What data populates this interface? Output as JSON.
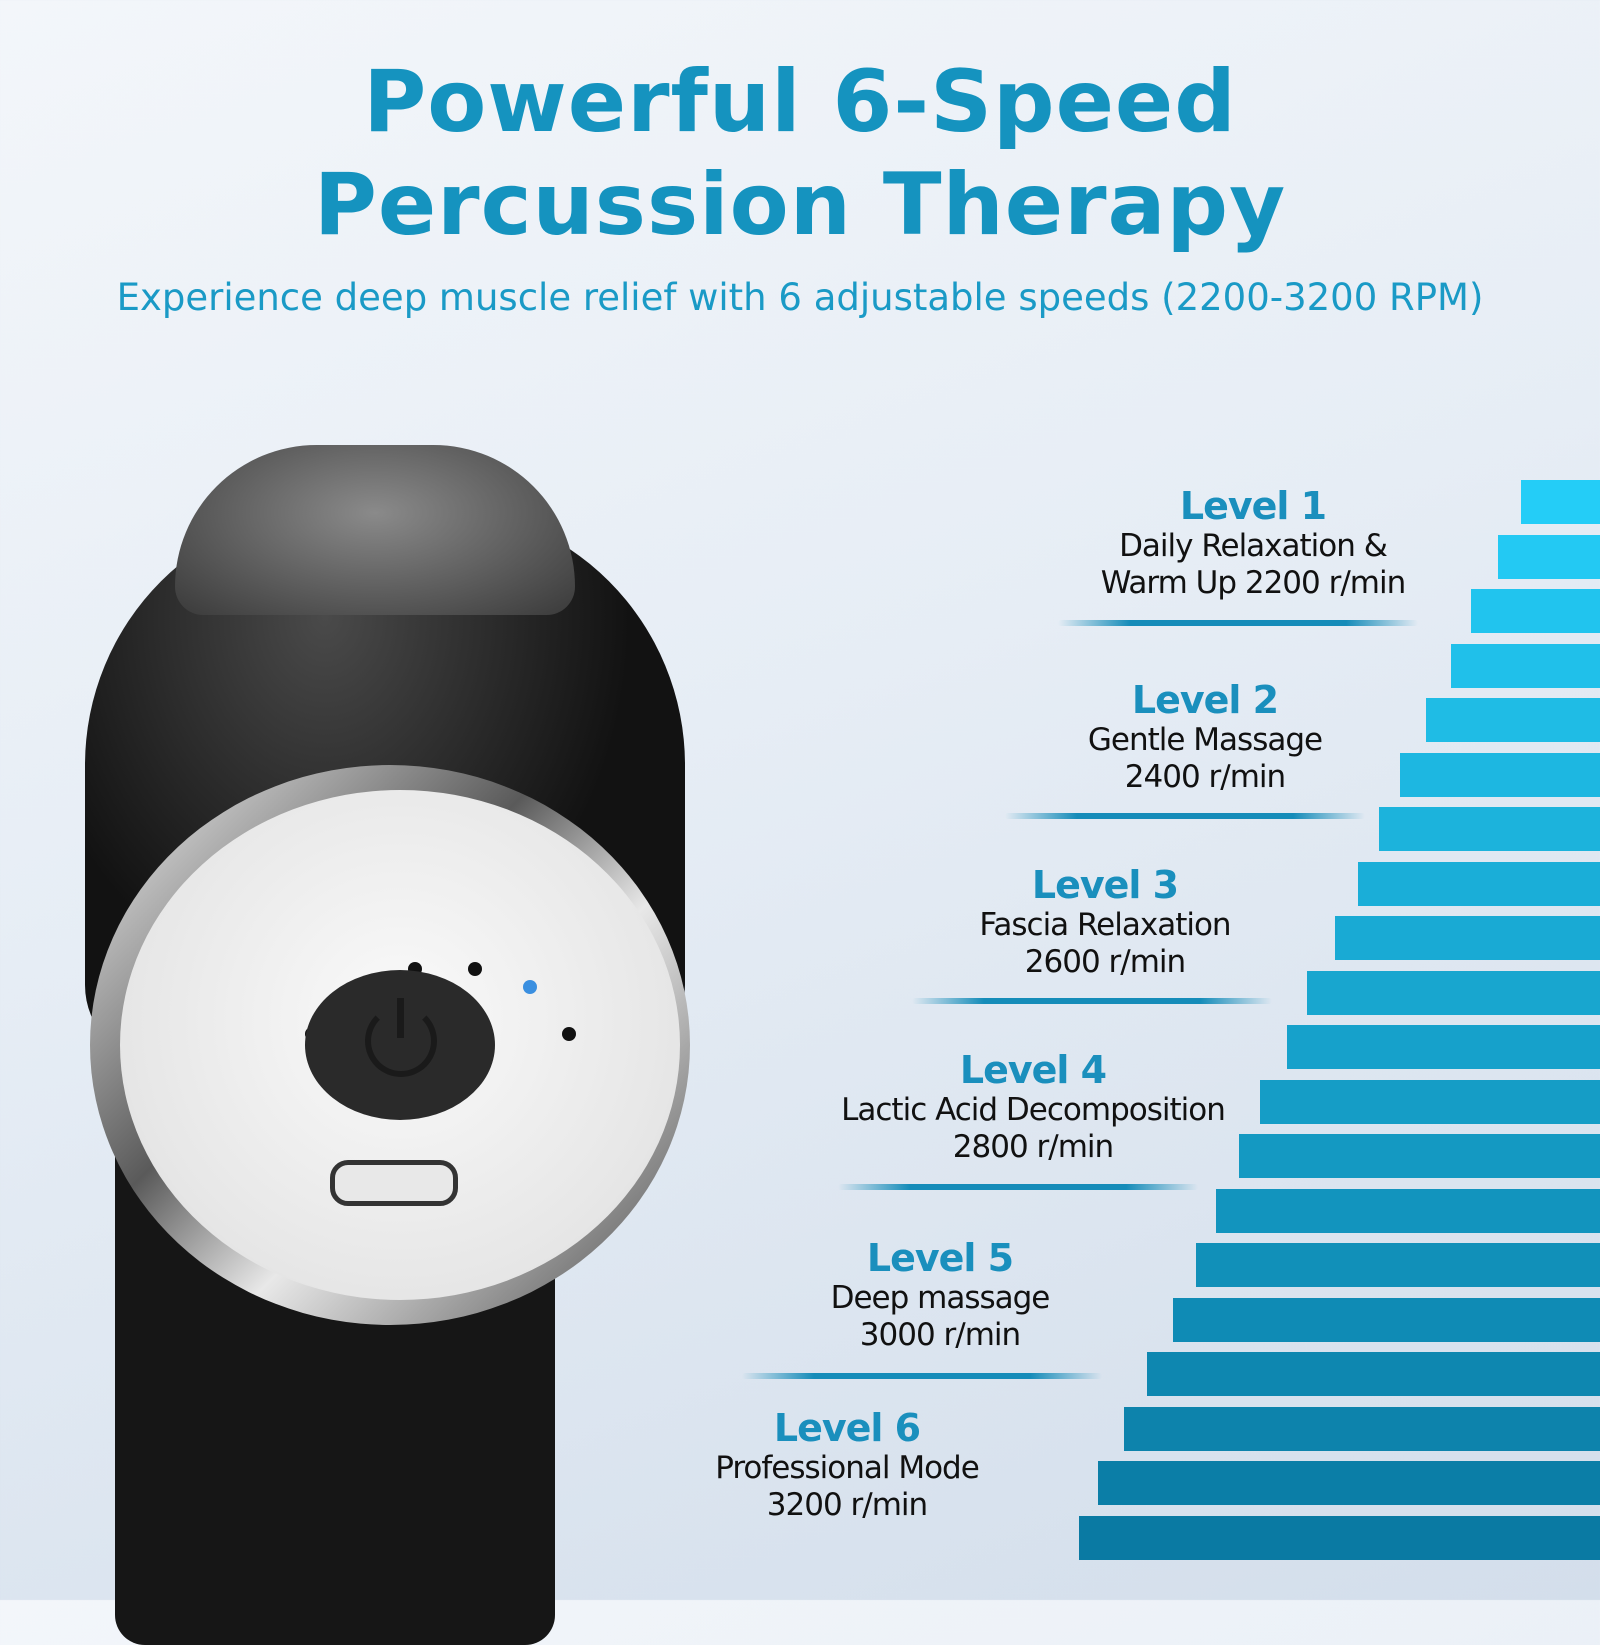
{
  "header": {
    "title_line1": "Powerful 6-Speed",
    "title_line2": "Percussion Therapy",
    "subtitle": "Experience deep muscle relief with 6 adjustable speeds (2200-3200 RPM)"
  },
  "levels": [
    {
      "name": "Level 1",
      "line1": "Daily Relaxation &",
      "line2": "Warm Up 2200 r/min",
      "rpm": 2200
    },
    {
      "name": "Level 2",
      "line1": "Gentle Massage",
      "line2": "2400 r/min",
      "rpm": 2400
    },
    {
      "name": "Level 3",
      "line1": "Fascia Relaxation",
      "line2": "2600 r/min",
      "rpm": 2600
    },
    {
      "name": "Level 4",
      "line1": "Lactic Acid Decomposition",
      "line2": "2800 r/min",
      "rpm": 2800
    },
    {
      "name": "Level 5",
      "line1": "Deep massage",
      "line2": "3000 r/min",
      "rpm": 3000
    },
    {
      "name": "Level 6",
      "line1": "Professional Mode",
      "line2": "3200 r/min",
      "rpm": 3200
    }
  ],
  "colors": {
    "accent": "#1593bf",
    "bar_top": "#24cdf7",
    "bar_bottom": "#0a7aa3",
    "indicator_led": "#3a8fe0"
  },
  "device": {
    "icons": [
      "power-icon",
      "usb-c-port"
    ]
  }
}
